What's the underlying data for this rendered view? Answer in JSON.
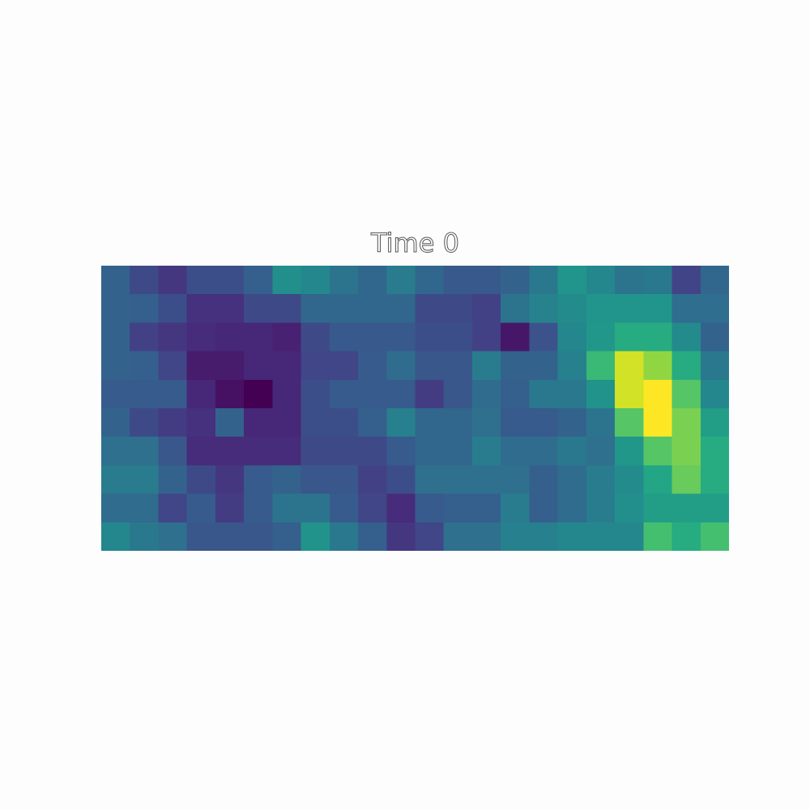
{
  "chart_data": {
    "type": "heatmap",
    "title": "Time 0",
    "colormap": "viridis",
    "axes_visible": false,
    "colorbar": false,
    "rows": 10,
    "cols": 22,
    "values": [
      [
        0.4,
        0.28,
        0.2,
        0.3,
        0.3,
        0.38,
        0.62,
        0.58,
        0.48,
        0.42,
        0.52,
        0.42,
        0.35,
        0.35,
        0.4,
        0.5,
        0.65,
        0.58,
        0.48,
        0.5,
        0.25,
        0.42
      ],
      [
        0.4,
        0.38,
        0.3,
        0.18,
        0.18,
        0.28,
        0.28,
        0.42,
        0.42,
        0.42,
        0.42,
        0.28,
        0.28,
        0.24,
        0.48,
        0.55,
        0.6,
        0.65,
        0.65,
        0.65,
        0.45,
        0.45
      ],
      [
        0.4,
        0.24,
        0.2,
        0.16,
        0.14,
        0.14,
        0.12,
        0.28,
        0.35,
        0.35,
        0.35,
        0.3,
        0.3,
        0.24,
        0.08,
        0.32,
        0.58,
        0.66,
        0.76,
        0.76,
        0.6,
        0.4
      ],
      [
        0.4,
        0.38,
        0.26,
        0.1,
        0.1,
        0.14,
        0.14,
        0.26,
        0.26,
        0.36,
        0.44,
        0.34,
        0.34,
        0.52,
        0.4,
        0.4,
        0.54,
        0.8,
        0.96,
        0.9,
        0.76,
        0.5
      ],
      [
        0.36,
        0.36,
        0.36,
        0.14,
        0.06,
        0.0,
        0.14,
        0.3,
        0.36,
        0.36,
        0.36,
        0.22,
        0.34,
        0.44,
        0.38,
        0.5,
        0.5,
        0.64,
        0.96,
        1.0,
        0.84,
        0.58
      ],
      [
        0.4,
        0.28,
        0.22,
        0.18,
        0.4,
        0.14,
        0.14,
        0.3,
        0.3,
        0.38,
        0.54,
        0.42,
        0.42,
        0.46,
        0.36,
        0.36,
        0.4,
        0.48,
        0.84,
        1.0,
        0.88,
        0.7
      ],
      [
        0.46,
        0.46,
        0.34,
        0.16,
        0.16,
        0.16,
        0.16,
        0.28,
        0.28,
        0.28,
        0.36,
        0.42,
        0.42,
        0.52,
        0.44,
        0.44,
        0.5,
        0.46,
        0.66,
        0.84,
        0.88,
        0.76
      ],
      [
        0.52,
        0.52,
        0.4,
        0.28,
        0.2,
        0.36,
        0.4,
        0.34,
        0.34,
        0.24,
        0.3,
        0.46,
        0.46,
        0.46,
        0.46,
        0.38,
        0.44,
        0.52,
        0.6,
        0.74,
        0.86,
        0.76
      ],
      [
        0.44,
        0.44,
        0.26,
        0.36,
        0.22,
        0.36,
        0.48,
        0.48,
        0.36,
        0.26,
        0.16,
        0.36,
        0.38,
        0.38,
        0.52,
        0.38,
        0.44,
        0.52,
        0.62,
        0.7,
        0.7,
        0.7
      ],
      [
        0.58,
        0.5,
        0.46,
        0.34,
        0.34,
        0.34,
        0.38,
        0.64,
        0.5,
        0.38,
        0.2,
        0.26,
        0.46,
        0.46,
        0.54,
        0.54,
        0.58,
        0.58,
        0.58,
        0.82,
        0.76,
        0.82
      ]
    ]
  }
}
